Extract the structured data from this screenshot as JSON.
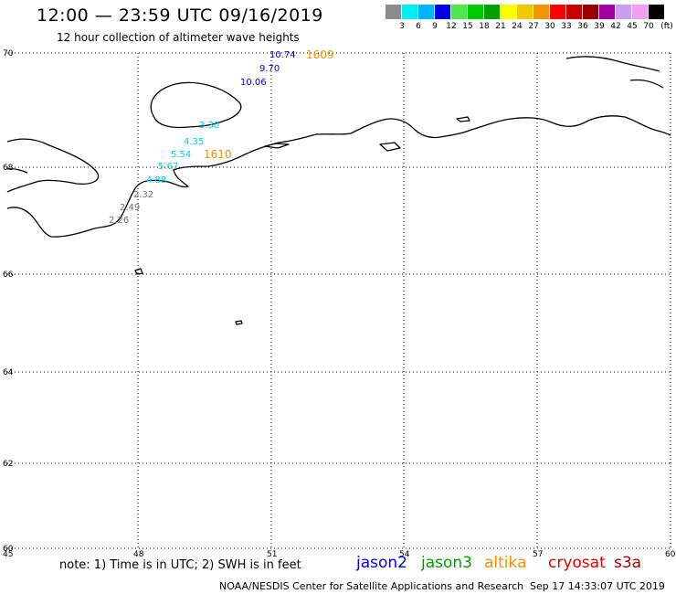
{
  "header": {
    "title": "12:00 — 23:59 UTC 09/16/2019",
    "subtitle": "12 hour collection of altimeter wave heights"
  },
  "legend": {
    "unit": "(ft)",
    "colors": [
      "#8c8c8c",
      "#00f0f0",
      "#00b4ff",
      "#0000e6",
      "#50e650",
      "#00c800",
      "#00a000",
      "#ffff00",
      "#f0c800",
      "#f09600",
      "#ff0000",
      "#c80000",
      "#960000",
      "#a000a0",
      "#c8a0f0",
      "#f0a0f0",
      "#000000"
    ],
    "labels": [
      "3",
      "6",
      "9",
      "12",
      "15",
      "18",
      "21",
      "24",
      "27",
      "30",
      "33",
      "36",
      "39",
      "42",
      "45",
      "70"
    ]
  },
  "map": {
    "lon_ticks": [
      "45",
      "48",
      "51",
      "54",
      "57",
      "60"
    ],
    "lat_ticks": [
      "70",
      "68",
      "66",
      "64",
      "62",
      "60"
    ]
  },
  "observations": [
    {
      "value": "10.74",
      "color": "#0000cc"
    },
    {
      "value": "9.70",
      "color": "#0000cc"
    },
    {
      "value": "10.06",
      "color": "#0000cc"
    },
    {
      "value": "3.30",
      "color": "#00d0e0"
    },
    {
      "value": "4.35",
      "color": "#00d0e0"
    },
    {
      "value": "5.54",
      "color": "#00d0e0"
    },
    {
      "value": "5.67",
      "color": "#00d0e0"
    },
    {
      "value": "4.88",
      "color": "#00d0e0"
    },
    {
      "value": "2.32",
      "color": "#707070"
    },
    {
      "value": "2.49",
      "color": "#707070"
    },
    {
      "value": "2.26",
      "color": "#707070"
    }
  ],
  "pass_times": [
    {
      "value": "1609",
      "color": "#f09000"
    },
    {
      "value": "1610",
      "color": "#f09000"
    }
  ],
  "footer": {
    "note": "note: 1) Time is in UTC; 2) SWH is in feet",
    "satellites": [
      {
        "name": "jason2",
        "color": "#0000dd"
      },
      {
        "name": "jason3",
        "color": "#009900"
      },
      {
        "name": "altika",
        "color": "#f09000"
      },
      {
        "name": "cryosat",
        "color": "#dd0000"
      },
      {
        "name": "s3a",
        "color": "#990000"
      }
    ],
    "credit": "NOAA/NESDIS Center for Satellite Applications and Research",
    "timestamp": "Sep 17 14:33:07 UTC 2019"
  }
}
